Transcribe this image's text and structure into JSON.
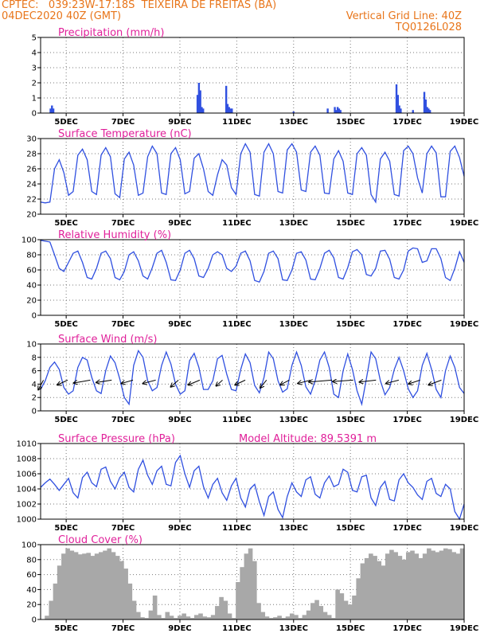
{
  "header": {
    "line1_left": "CPTEC:   039:23W-17:18S  TEIXEIRA DE FREITAS (BA)",
    "line2_left": "04DEC2020 40Z (GMT)",
    "line2_right": "Vertical Grid Line: 40Z",
    "line3_right": "TQ0126L028"
  },
  "colors": {
    "header": "#e8751a",
    "title": "#e0209a",
    "series": "#3050e0",
    "cloud": "#a8a8a8",
    "grid": "#7a7a7a"
  },
  "x_axis": {
    "ticks": [
      "5DEC",
      "7DEC",
      "9DEC",
      "11DEC",
      "13DEC",
      "15DEC",
      "17DEC",
      "19DEC"
    ],
    "tick_days": [
      5,
      7,
      9,
      11,
      13,
      15,
      17,
      19
    ],
    "range_days": [
      4.1,
      19.0
    ]
  },
  "chart_data": [
    {
      "type": "bar",
      "title": "Precipitation (mm/h)",
      "ylim": [
        0,
        5
      ],
      "yticks": [
        0,
        1,
        2,
        3,
        4,
        5
      ],
      "x": [
        4.45,
        4.5,
        4.55,
        9.62,
        9.67,
        9.72,
        9.77,
        9.82,
        10.63,
        10.68,
        10.73,
        10.78,
        10.83,
        14.45,
        14.5,
        14.55,
        14.6,
        14.65,
        16.62,
        16.67,
        16.72,
        16.77,
        17.6,
        17.65,
        17.7,
        17.75,
        17.8,
        13.0,
        14.2,
        17.2
      ],
      "values": [
        0.3,
        0.5,
        0.3,
        1.2,
        2.0,
        1.5,
        0.4,
        0.3,
        1.8,
        0.6,
        0.4,
        0.3,
        0.3,
        0.4,
        0.2,
        0.4,
        0.3,
        0.2,
        1.9,
        1.2,
        0.5,
        0.3,
        1.4,
        0.9,
        0.4,
        0.3,
        0.2,
        0.1,
        0.3,
        0.2
      ]
    },
    {
      "type": "line",
      "title": "Surface Temperature (nC)",
      "ylim": [
        20,
        30
      ],
      "yticks": [
        20,
        22,
        24,
        26,
        28,
        30
      ],
      "series": [
        {
          "values": [
            21.6,
            21.5,
            21.6,
            26.0,
            27.2,
            25.5,
            22.5,
            23.0,
            27.8,
            28.6,
            27.2,
            23.0,
            22.6,
            27.8,
            28.8,
            27.6,
            22.7,
            22.2,
            27.3,
            28.2,
            26.5,
            22.5,
            22.8,
            27.6,
            29.0,
            28.0,
            22.8,
            22.6,
            28.0,
            28.8,
            27.2,
            22.7,
            23.0,
            27.4,
            28.0,
            26.0,
            23.0,
            22.5,
            25.2,
            27.2,
            26.5,
            23.5,
            22.6,
            28.0,
            29.3,
            28.2,
            22.6,
            22.4,
            28.2,
            29.3,
            28.0,
            23.0,
            22.8,
            28.5,
            29.3,
            28.2,
            23.2,
            23.0,
            28.2,
            29.0,
            27.8,
            22.8,
            22.7,
            27.3,
            28.4,
            27.0,
            22.8,
            22.6,
            28.0,
            28.8,
            27.8,
            22.6,
            21.6,
            27.3,
            28.2,
            27.0,
            22.6,
            22.4,
            28.4,
            29.0,
            28.0,
            24.8,
            22.8,
            28.0,
            29.0,
            28.1,
            22.3,
            22.3,
            28.3,
            29.0,
            27.5,
            25.0
          ]
        }
      ]
    },
    {
      "type": "line",
      "title": "Relative Humidity (%)",
      "ylim": [
        0,
        100
      ],
      "yticks": [
        0,
        20,
        40,
        60,
        80,
        100
      ],
      "series": [
        {
          "values": [
            99,
            98,
            97,
            80,
            62,
            58,
            70,
            82,
            85,
            70,
            50,
            48,
            62,
            82,
            85,
            75,
            50,
            47,
            58,
            80,
            84,
            72,
            52,
            48,
            63,
            82,
            86,
            70,
            47,
            46,
            60,
            82,
            86,
            75,
            52,
            50,
            62,
            80,
            84,
            80,
            62,
            58,
            65,
            82,
            85,
            72,
            46,
            44,
            58,
            82,
            85,
            75,
            47,
            46,
            60,
            82,
            84,
            73,
            48,
            47,
            62,
            82,
            86,
            76,
            50,
            48,
            63,
            84,
            87,
            80,
            54,
            52,
            62,
            85,
            86,
            74,
            50,
            48,
            60,
            85,
            89,
            88,
            70,
            72,
            88,
            88,
            75,
            50,
            46,
            62,
            84,
            70
          ]
        }
      ]
    },
    {
      "type": "line",
      "title": "Surface Wind (m/s)",
      "ylim": [
        0,
        10
      ],
      "yticks": [
        0,
        2,
        4,
        6,
        8,
        10
      ],
      "series": [
        {
          "values": [
            3.2,
            4.5,
            6.5,
            7.3,
            6.2,
            3.5,
            2.5,
            3.0,
            6.5,
            8.0,
            7.6,
            5.0,
            3.0,
            2.6,
            6.0,
            8.2,
            7.2,
            4.8,
            2.0,
            1.0,
            6.8,
            9.0,
            8.0,
            4.5,
            3.0,
            3.5,
            6.8,
            8.8,
            7.0,
            4.0,
            2.5,
            3.0,
            7.5,
            8.6,
            6.5,
            3.2,
            3.2,
            4.5,
            7.8,
            8.3,
            5.5,
            3.2,
            3.0,
            6.2,
            8.5,
            7.2,
            3.8,
            2.7,
            5.0,
            8.8,
            7.8,
            4.5,
            2.8,
            3.3,
            6.8,
            8.8,
            6.8,
            3.6,
            2.5,
            4.5,
            7.6,
            8.8,
            6.5,
            2.5,
            2.0,
            6.0,
            8.5,
            6.2,
            3.0,
            1.0,
            4.8,
            8.8,
            7.8,
            4.5,
            2.4,
            3.5,
            6.2,
            8.0,
            6.0,
            3.3,
            2.0,
            3.0,
            6.8,
            8.6,
            6.2,
            3.2,
            2.0,
            6.0,
            8.2,
            6.5,
            3.5,
            2.6
          ]
        }
      ],
      "vectors_x": [
        4.2,
        5.05,
        5.85,
        6.6,
        7.35,
        8.15,
        8.95,
        9.7,
        10.5,
        11.3,
        12.05,
        12.85,
        13.6,
        14.35,
        15.1,
        15.9,
        16.7,
        17.45,
        18.2
      ],
      "vectors_dx": [
        0.4,
        0.8,
        1.3,
        1.2,
        0.9,
        1.0,
        0.6,
        0.9,
        0.5,
        0.8,
        0.5,
        0.7,
        1.0,
        1.8,
        1.6,
        1.3,
        1.0,
        0.9,
        1.0
      ],
      "vectors_dy": [
        2.0,
        1.0,
        0.6,
        0.5,
        0.7,
        0.7,
        1.4,
        1.0,
        1.2,
        1.0,
        1.6,
        1.0,
        0.7,
        0.4,
        0.3,
        0.4,
        0.7,
        0.8,
        1.0
      ]
    },
    {
      "type": "line",
      "title": "Surface Pressure (hPa)",
      "subtitle": "Model Altitude: 89.5391 m",
      "ylim": [
        1000,
        1010
      ],
      "yticks": [
        1000,
        1002,
        1004,
        1006,
        1008,
        1010
      ],
      "series": [
        {
          "values": [
            1004.2,
            1004.8,
            1005.3,
            1004.6,
            1003.8,
            1004.6,
            1005.4,
            1003.5,
            1002.8,
            1005.5,
            1006.2,
            1004.8,
            1004.3,
            1006.6,
            1006.9,
            1005.0,
            1004.0,
            1005.5,
            1006.2,
            1004.2,
            1003.6,
            1006.6,
            1007.8,
            1005.8,
            1004.6,
            1006.4,
            1007.0,
            1004.6,
            1004.4,
            1007.5,
            1008.4,
            1006.0,
            1004.2,
            1006.4,
            1007.0,
            1004.3,
            1002.8,
            1004.6,
            1005.4,
            1003.5,
            1002.5,
            1004.4,
            1005.4,
            1002.8,
            1001.6,
            1004.0,
            1004.6,
            1002.3,
            1000.5,
            1003.0,
            1003.6,
            1001.3,
            1000.2,
            1003.0,
            1004.8,
            1003.6,
            1003.0,
            1005.2,
            1005.6,
            1003.3,
            1002.8,
            1004.8,
            1005.7,
            1004.3,
            1004.6,
            1006.6,
            1006.2,
            1003.8,
            1003.6,
            1005.6,
            1005.8,
            1002.8,
            1001.8,
            1004.2,
            1005.0,
            1002.6,
            1002.4,
            1005.2,
            1006.0,
            1004.8,
            1004.2,
            1003.2,
            1002.6,
            1005.0,
            1005.4,
            1003.4,
            1003.0,
            1004.6,
            1004.0,
            1001.0,
            1000.0,
            1002.0
          ]
        }
      ]
    },
    {
      "type": "area",
      "title": "Cloud Cover (%)",
      "ylim": [
        0,
        100
      ],
      "yticks": [
        0,
        20,
        40,
        60,
        80,
        100
      ],
      "series": [
        {
          "values": [
            0,
            5,
            25,
            48,
            72,
            88,
            95,
            92,
            90,
            87,
            88,
            89,
            85,
            88,
            90,
            92,
            95,
            90,
            85,
            78,
            68,
            48,
            25,
            10,
            3,
            2,
            12,
            32,
            6,
            2,
            10,
            5,
            2,
            5,
            8,
            4,
            2,
            6,
            8,
            4,
            3,
            6,
            18,
            30,
            25,
            8,
            2,
            50,
            70,
            88,
            95,
            78,
            22,
            10,
            4,
            2,
            3,
            5,
            2,
            4,
            8,
            6,
            2,
            6,
            12,
            22,
            26,
            18,
            10,
            6,
            2,
            40,
            35,
            25,
            20,
            32,
            55,
            75,
            82,
            88,
            85,
            78,
            72,
            88,
            93,
            90,
            85,
            80,
            90,
            92,
            88,
            82,
            88,
            95,
            92,
            90,
            92,
            95,
            94,
            90,
            88,
            95
          ]
        }
      ]
    }
  ]
}
